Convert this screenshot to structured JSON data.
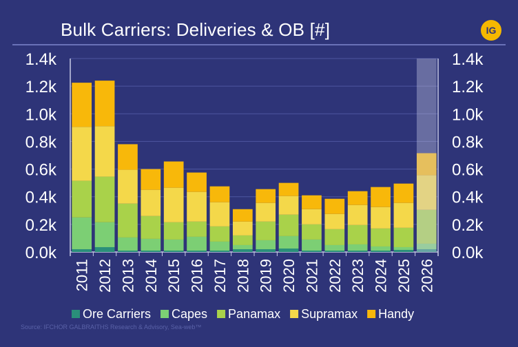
{
  "header": {
    "title": "Bulk Carriers: Deliveries & OB [#]",
    "logo_text": "IG"
  },
  "source": "Source: IFCHOR GALBRAITHS Research & Advisory, Sea-web™",
  "colors": {
    "background": "#2e3478",
    "Ore Carriers": "#2a8f7a",
    "Capes": "#7ccf74",
    "Panamax": "#a9d24a",
    "Supramax": "#f4d84a",
    "Handy": "#f8b80a",
    "projection_overlay": "#c9cbe6"
  },
  "chart_data": {
    "type": "bar",
    "stacked": true,
    "title": "Bulk Carriers: Deliveries & OB [#]",
    "categories": [
      "2011",
      "2012",
      "2013",
      "2014",
      "2015",
      "2016",
      "2017",
      "2018",
      "2019",
      "2020",
      "2021",
      "2022",
      "2023",
      "2024",
      "2025",
      "2026"
    ],
    "series": [
      {
        "name": "Ore Carriers",
        "values": [
          20,
          35,
          10,
          10,
          10,
          10,
          10,
          20,
          20,
          25,
          10,
          10,
          10,
          10,
          15,
          20
        ]
      },
      {
        "name": "Capes",
        "values": [
          230,
          180,
          95,
          85,
          80,
          100,
          65,
          30,
          65,
          90,
          80,
          40,
          45,
          30,
          20,
          40
        ]
      },
      {
        "name": "Panamax",
        "values": [
          265,
          330,
          245,
          165,
          125,
          110,
          110,
          70,
          135,
          155,
          110,
          115,
          140,
          130,
          140,
          245
        ]
      },
      {
        "name": "Supramax",
        "values": [
          390,
          365,
          245,
          190,
          250,
          215,
          175,
          100,
          135,
          135,
          110,
          110,
          145,
          155,
          180,
          250
        ]
      },
      {
        "name": "Handy",
        "values": [
          320,
          330,
          185,
          150,
          190,
          140,
          115,
          90,
          100,
          95,
          100,
          110,
          100,
          145,
          140,
          160
        ]
      }
    ],
    "ylim": [
      0,
      1400
    ],
    "yticks": [
      "0.0k",
      "0.2k",
      "0.4k",
      "0.6k",
      "0.8k",
      "1.0k",
      "1.2k",
      "1.4k"
    ],
    "secondary_yticks": [
      "0.0k",
      "0.2k",
      "0.4k",
      "0.6k",
      "0.8k",
      "1.0k",
      "1.2k",
      "1.4k"
    ],
    "grid": true,
    "legend": "bottom",
    "highlighted_category": "2026"
  }
}
